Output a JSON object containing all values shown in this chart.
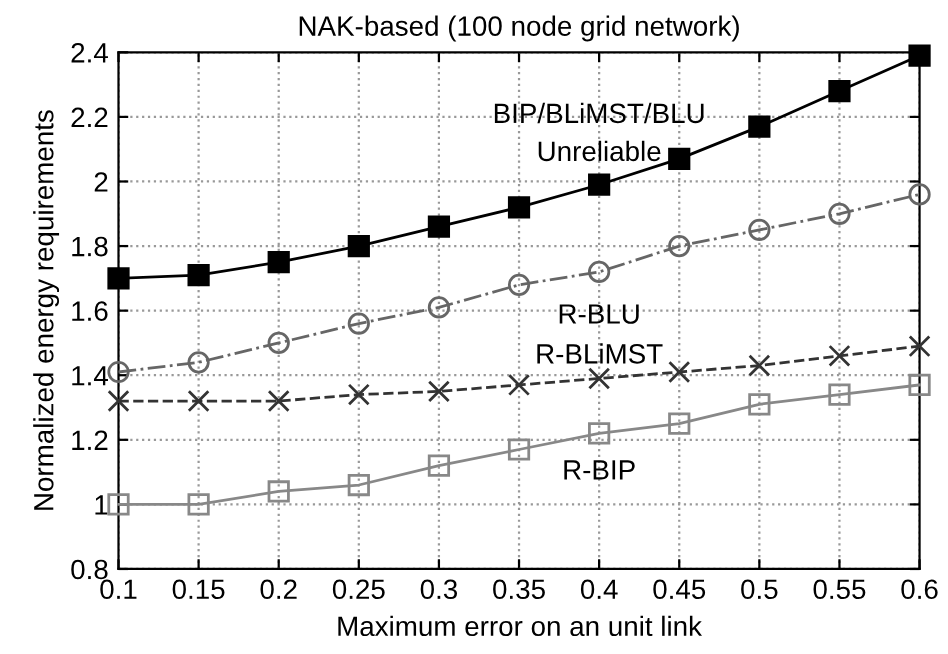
{
  "chart_data": {
    "type": "line",
    "title": "NAK-based (100 node grid network)",
    "xlabel": "Maximum error on an unit link",
    "ylabel": "Normalized energy requirements",
    "x": [
      0.1,
      0.15,
      0.2,
      0.25,
      0.3,
      0.35,
      0.4,
      0.45,
      0.5,
      0.55,
      0.6
    ],
    "series": [
      {
        "name": "BIP/BLiMST/BLU\nUnreliable",
        "color": "#000000",
        "marker": "square",
        "line_style": "solid",
        "values": [
          1.7,
          1.71,
          1.75,
          1.8,
          1.86,
          1.92,
          1.99,
          2.07,
          2.17,
          2.28,
          2.39
        ]
      },
      {
        "name": "R-BLU",
        "color": "#666666",
        "marker": "circle",
        "line_style": "dotted",
        "values": [
          1.41,
          1.44,
          1.5,
          1.56,
          1.61,
          1.68,
          1.72,
          1.8,
          1.85,
          1.9,
          1.96
        ]
      },
      {
        "name": "R-BLiMST",
        "color": "#333333",
        "marker": "cross",
        "line_style": "dashed",
        "values": [
          1.32,
          1.32,
          1.32,
          1.34,
          1.35,
          1.37,
          1.39,
          1.41,
          1.43,
          1.46,
          1.49
        ]
      },
      {
        "name": "R-BIP",
        "color": "#888888",
        "marker": "square",
        "line_style": "solid",
        "values": [
          1.0,
          1.0,
          1.04,
          1.06,
          1.12,
          1.17,
          1.22,
          1.25,
          1.31,
          1.34,
          1.37
        ]
      }
    ],
    "xlim": [
      0.1,
      0.6
    ],
    "xticks": [
      0.1,
      0.15,
      0.2,
      0.25,
      0.3,
      0.35,
      0.4,
      0.45,
      0.5,
      0.55,
      0.6
    ],
    "ylim": [
      0.8,
      2.4
    ],
    "yticks": [
      0.8,
      1,
      1.2,
      1.4,
      1.6,
      1.8,
      2,
      2.2,
      2.4
    ],
    "grid": true
  }
}
